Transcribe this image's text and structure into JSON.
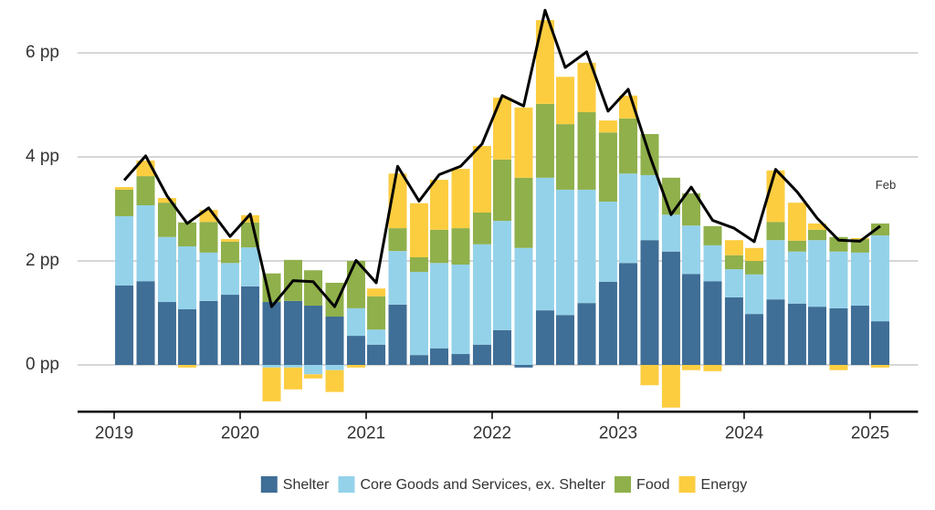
{
  "chart_data": {
    "type": "bar",
    "stacked": true,
    "x": [
      2019.08,
      2019.25,
      2019.42,
      2019.58,
      2019.75,
      2019.92,
      2020.08,
      2020.25,
      2020.42,
      2020.58,
      2020.75,
      2020.92,
      2021.08,
      2021.25,
      2021.42,
      2021.58,
      2021.75,
      2021.92,
      2022.08,
      2022.25,
      2022.42,
      2022.58,
      2022.75,
      2022.92,
      2023.08,
      2023.25,
      2023.42,
      2023.58,
      2023.75,
      2023.92,
      2024.08,
      2024.25,
      2024.42,
      2024.58,
      2024.75,
      2024.92,
      2025.08
    ],
    "series": [
      {
        "name": "Shelter",
        "color": "#3f6e96",
        "values": [
          1.53,
          1.61,
          1.21,
          1.07,
          1.23,
          1.35,
          1.51,
          1.21,
          1.23,
          1.14,
          0.93,
          0.56,
          0.39,
          1.16,
          0.19,
          0.32,
          0.21,
          0.39,
          0.67,
          -0.05,
          1.05,
          0.96,
          1.19,
          1.6,
          1.96,
          2.4,
          2.18,
          1.75,
          1.61,
          1.3,
          0.98,
          1.26,
          1.18,
          1.12,
          1.09,
          1.14,
          0.84
        ]
      },
      {
        "name": "Core Goods and Services, ex. Shelter",
        "color": "#94d2ea",
        "values": [
          1.33,
          1.46,
          1.25,
          1.21,
          0.93,
          0.61,
          0.75,
          -0.05,
          -0.05,
          -0.18,
          -0.1,
          0.53,
          0.29,
          1.03,
          1.6,
          1.64,
          1.72,
          1.93,
          2.1,
          2.25,
          2.55,
          2.41,
          2.18,
          1.54,
          1.72,
          1.25,
          0.71,
          0.93,
          0.69,
          0.54,
          0.76,
          1.14,
          1.0,
          1.28,
          1.09,
          1.02,
          1.65
        ]
      },
      {
        "name": "Food",
        "color": "#8fb04b",
        "values": [
          0.51,
          0.56,
          0.66,
          0.46,
          0.59,
          0.41,
          0.48,
          0.55,
          0.79,
          0.68,
          0.65,
          0.91,
          0.64,
          0.44,
          0.28,
          0.64,
          0.7,
          0.61,
          1.18,
          1.35,
          1.42,
          1.26,
          1.49,
          1.33,
          1.06,
          0.79,
          0.71,
          0.62,
          0.37,
          0.27,
          0.26,
          0.35,
          0.21,
          0.2,
          0.28,
          0.26,
          0.23
        ]
      },
      {
        "name": "Energy",
        "color": "#fdcd40",
        "values": [
          0.05,
          0.3,
          0.09,
          -0.05,
          0.23,
          0.05,
          0.14,
          -0.65,
          -0.42,
          -0.08,
          -0.42,
          -0.05,
          0.15,
          1.05,
          1.04,
          0.96,
          1.14,
          1.28,
          1.19,
          1.35,
          1.61,
          0.91,
          0.95,
          0.23,
          0.44,
          -0.39,
          -0.82,
          -0.1,
          -0.12,
          0.29,
          0.25,
          0.99,
          0.73,
          0.12,
          -0.1,
          0.02,
          -0.05
        ]
      }
    ],
    "total": {
      "color": "#000000",
      "values": [
        3.55,
        4.02,
        3.25,
        2.72,
        3.02,
        2.47,
        2.9,
        1.12,
        1.62,
        1.6,
        1.12,
        2.01,
        1.58,
        3.82,
        3.15,
        3.66,
        3.82,
        4.25,
        5.18,
        4.98,
        6.82,
        5.72,
        6.02,
        4.88,
        5.3,
        4.03,
        2.89,
        3.42,
        2.78,
        2.63,
        2.37,
        3.76,
        3.33,
        2.82,
        2.4,
        2.38,
        2.67
      ]
    },
    "annotation": "Feb",
    "xlim": [
      2018.71,
      2025.38
    ],
    "xticks": [
      2019,
      2020,
      2021,
      2022,
      2023,
      2024,
      2025
    ],
    "ylim": [
      -0.9,
      6.9
    ],
    "yticks": [
      {
        "value": 0,
        "label": "0 pp"
      },
      {
        "value": 2,
        "label": "2 pp"
      },
      {
        "value": 4,
        "label": "4 pp"
      },
      {
        "value": 6,
        "label": "6 pp"
      }
    ],
    "grid": true,
    "legend": "bottom"
  }
}
